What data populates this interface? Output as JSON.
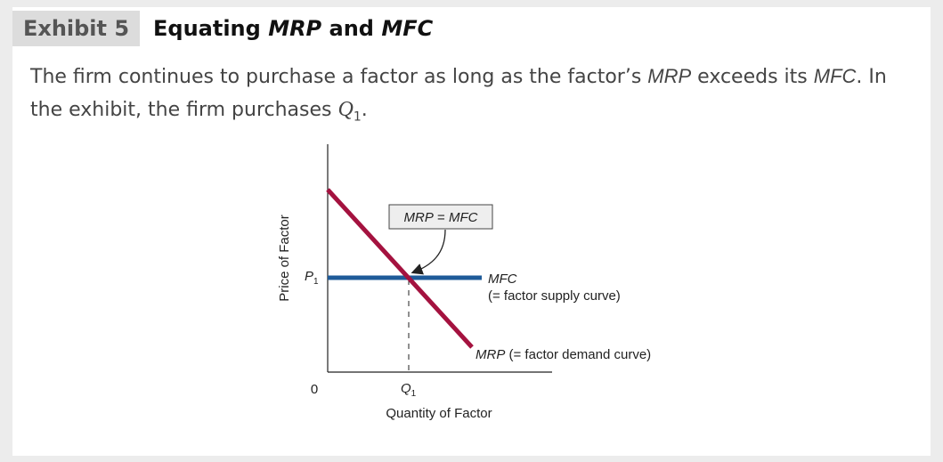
{
  "header": {
    "exhibit": "Exhibit 5",
    "title": [
      "Equating ",
      "MRP",
      " and ",
      "MFC"
    ]
  },
  "caption": [
    "The firm continues to purchase a factor as long as the factor’s ",
    "MRP",
    " exceeds its ",
    "MFC",
    ". In the exhibit, the firm purchases ",
    "Q",
    "1",
    "."
  ],
  "diagram": {
    "y_axis_label": "Price of Factor",
    "x_axis_label": "Quantity of Factor",
    "origin": "0",
    "p_label": [
      "P",
      "1"
    ],
    "q_label": [
      "Q",
      "1"
    ],
    "callout": [
      "MRP",
      " = ",
      "MFC"
    ],
    "mfc_label": "MFC",
    "mfc_note": "(= factor supply curve)",
    "mrp_label": [
      "MRP",
      " (= factor demand curve)"
    ]
  }
}
